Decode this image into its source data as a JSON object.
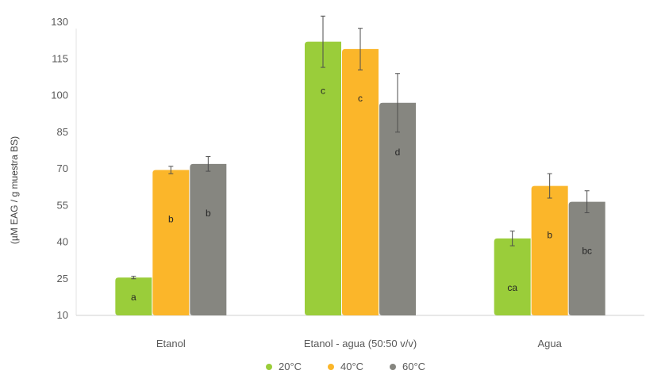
{
  "chart_data": {
    "type": "bar",
    "title": "",
    "xlabel": "",
    "ylabel": "(µM EAG /  g muestra BS)",
    "ylim": [
      10,
      130
    ],
    "yticks": [
      10,
      25,
      40,
      55,
      70,
      85,
      100,
      115,
      130
    ],
    "categories": [
      "Etanol",
      "Etanol - agua (50:50 v/v)",
      "Agua"
    ],
    "grid": false,
    "legend_position": "bottom",
    "series": [
      {
        "name": "20°C",
        "color": "#9ACD3A",
        "values": [
          25.5,
          122,
          41.5
        ],
        "errors": [
          0.5,
          10.5,
          3
        ],
        "labels": [
          "a",
          "c",
          "ca"
        ]
      },
      {
        "name": "40°C",
        "color": "#FBB62A",
        "values": [
          69.5,
          119,
          63
        ],
        "errors": [
          1.5,
          8.5,
          5
        ],
        "labels": [
          "b",
          "c",
          "b"
        ]
      },
      {
        "name": "60°C",
        "color": "#868680",
        "values": [
          72,
          97,
          56.5
        ],
        "errors": [
          3,
          12,
          4.5
        ],
        "labels": [
          "b",
          "d",
          "bc"
        ]
      }
    ]
  }
}
